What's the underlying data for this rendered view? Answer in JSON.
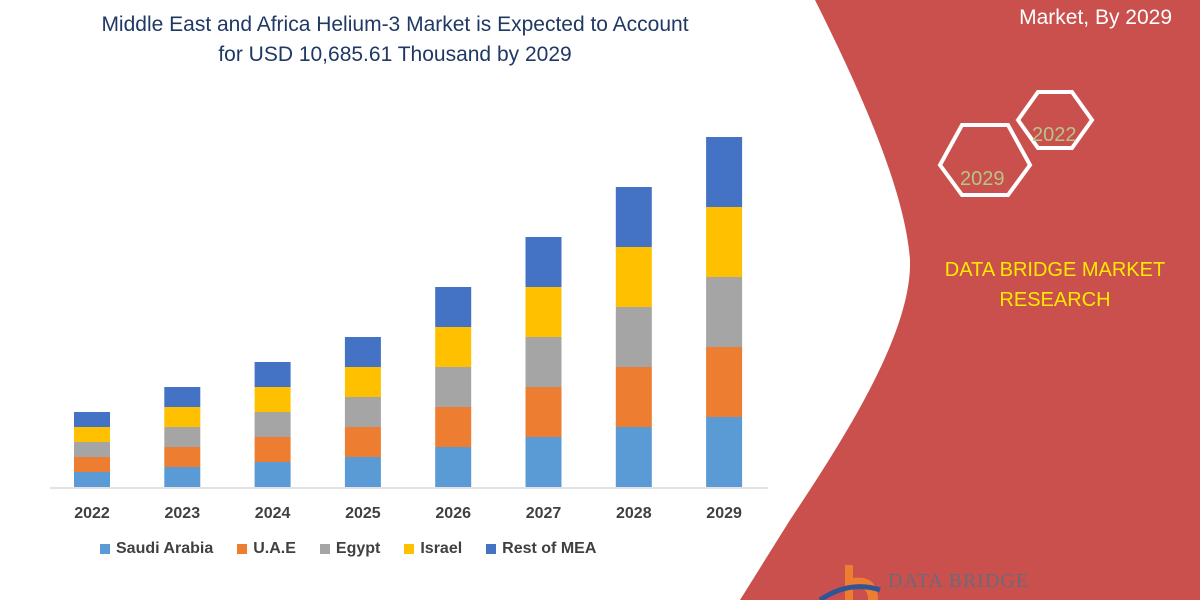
{
  "title_line1": "Middle East and Africa Helium-3 Market is Expected to Account",
  "title_line2": "for USD 10,685.61 Thousand by 2029",
  "side_panel": {
    "subtitle": "Market, By 2029",
    "hex_labels": [
      "2022",
      "2029"
    ],
    "brand": [
      "DATA BRIDGE MARKET",
      "RESEARCH"
    ],
    "logo_text": "DATA BRIDGE",
    "panel_color": "#c9504c",
    "brand_color": "#ffea00"
  },
  "chart_data": {
    "type": "bar",
    "stacked": true,
    "categories": [
      "2022",
      "2023",
      "2024",
      "2025",
      "2026",
      "2027",
      "2028",
      "2029"
    ],
    "series": [
      {
        "name": "Saudi Arabia",
        "color": "#5b9bd5",
        "values": [
          15,
          20,
          25,
          30,
          40,
          50,
          60,
          70
        ]
      },
      {
        "name": "U.A.E",
        "color": "#ed7d31",
        "values": [
          15,
          20,
          25,
          30,
          40,
          50,
          60,
          70
        ]
      },
      {
        "name": "Egypt",
        "color": "#a5a5a5",
        "values": [
          15,
          20,
          25,
          30,
          40,
          50,
          60,
          70
        ]
      },
      {
        "name": "Israel",
        "color": "#ffc000",
        "values": [
          15,
          20,
          25,
          30,
          40,
          50,
          60,
          70
        ]
      },
      {
        "name": "Rest of MEA",
        "color": "#4472c4",
        "values": [
          15,
          20,
          25,
          30,
          40,
          50,
          60,
          70
        ]
      }
    ],
    "ylim": [
      0,
      360
    ],
    "grid": false,
    "y_axis_shown": false,
    "legend_position": "bottom"
  }
}
